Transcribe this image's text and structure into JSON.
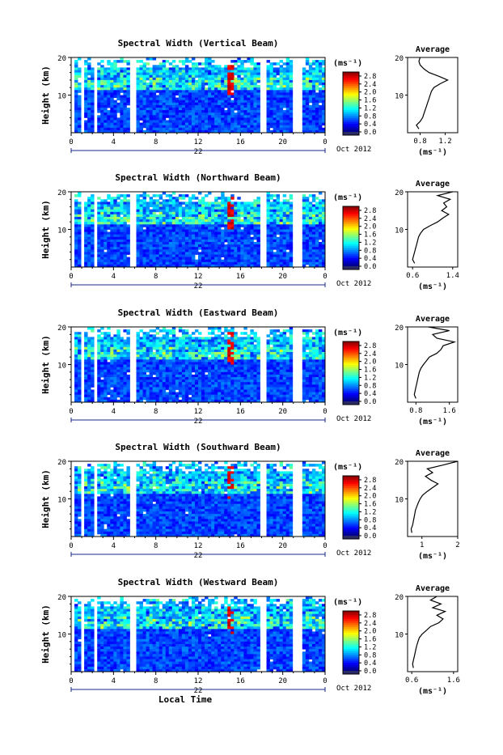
{
  "chart_data": [
    {
      "type": "heatmap",
      "title": "Spectral Width (Vertical Beam)",
      "ylabel": "Height (km)",
      "ylim": [
        0,
        20
      ],
      "yticks": [
        "20",
        "10"
      ],
      "xlim": [
        0,
        24
      ],
      "xticks": [
        "0",
        "4",
        "8",
        "12",
        "16",
        "20",
        "0"
      ],
      "date_label": "22",
      "month_label": "Oct 2012",
      "colorbar": {
        "unit": "(ms⁻¹)",
        "ticks": [
          "2.8",
          "2.4",
          "2.0",
          "1.6",
          "1.2",
          "0.8",
          "0.4",
          "0.0"
        ],
        "range": [
          0,
          3.0
        ]
      },
      "data_gaps_hours": [
        [
          0.0,
          0.2
        ],
        [
          1.0,
          1.2
        ],
        [
          2.2,
          2.4
        ],
        [
          3.0,
          3.2
        ],
        [
          5.6,
          6.2
        ],
        [
          17.8,
          18.4
        ],
        [
          20.8,
          21.8
        ]
      ],
      "high_width_column_hours": [
        14.9,
        15.4
      ],
      "average_profile": {
        "title": "Average",
        "xlabel": "(ms⁻¹)",
        "xticks": [
          "0.8",
          "1.2"
        ],
        "xlim": [
          0.6,
          1.4
        ],
        "yticks": [
          "20",
          "10"
        ],
        "height_km": [
          1,
          2,
          3,
          4,
          5,
          6,
          7,
          8,
          9,
          10,
          11,
          12,
          13,
          14,
          15,
          16,
          17,
          18,
          19,
          20
        ],
        "width_ms": [
          0.78,
          0.74,
          0.8,
          0.84,
          0.86,
          0.88,
          0.9,
          0.92,
          0.94,
          0.96,
          0.98,
          1.02,
          1.12,
          1.24,
          1.1,
          0.94,
          0.86,
          0.8,
          0.78,
          0.8
        ]
      }
    },
    {
      "type": "heatmap",
      "title": "Spectral Width (Northward Beam)",
      "ylabel": "Height (km)",
      "ylim": [
        0,
        20
      ],
      "yticks": [
        "20",
        "10"
      ],
      "xlim": [
        0,
        24
      ],
      "xticks": [
        "0",
        "4",
        "8",
        "12",
        "16",
        "20",
        "0"
      ],
      "date_label": "22",
      "month_label": "Oct 2012",
      "colorbar": {
        "unit": "(ms⁻¹)",
        "ticks": [
          "2.8",
          "2.4",
          "2.0",
          "1.6",
          "1.2",
          "0.8",
          "0.4",
          "0.0"
        ],
        "range": [
          0,
          3.0
        ]
      },
      "data_gaps_hours": [
        [
          0.0,
          0.2
        ],
        [
          1.0,
          1.2
        ],
        [
          2.2,
          2.4
        ],
        [
          3.0,
          3.2
        ],
        [
          5.6,
          6.2
        ],
        [
          17.8,
          18.4
        ],
        [
          20.8,
          21.8
        ]
      ],
      "high_width_column_hours": [
        14.9,
        15.4
      ],
      "average_profile": {
        "title": "Average",
        "xlabel": "(ms⁻¹)",
        "xticks": [
          "0.6",
          "1.4"
        ],
        "xlim": [
          0.5,
          1.5
        ],
        "yticks": [
          "20",
          "10"
        ],
        "height_km": [
          1,
          2,
          3,
          4,
          5,
          6,
          7,
          8,
          9,
          10,
          11,
          12,
          13,
          14,
          15,
          16,
          17,
          18,
          19,
          20
        ],
        "width_ms": [
          0.64,
          0.6,
          0.62,
          0.64,
          0.66,
          0.68,
          0.7,
          0.72,
          0.76,
          0.82,
          0.95,
          1.1,
          1.2,
          1.32,
          1.18,
          1.28,
          1.22,
          1.35,
          1.1,
          1.4
        ]
      }
    },
    {
      "type": "heatmap",
      "title": "Spectral Width (Eastward Beam)",
      "ylabel": "Height (km)",
      "ylim": [
        0,
        20
      ],
      "yticks": [
        "20",
        "10"
      ],
      "xlim": [
        0,
        24
      ],
      "xticks": [
        "0",
        "4",
        "8",
        "12",
        "16",
        "20",
        "0"
      ],
      "date_label": "22",
      "month_label": "Oct 2012",
      "colorbar": {
        "unit": "(ms⁻¹)",
        "ticks": [
          "2.8",
          "2.4",
          "2.0",
          "1.6",
          "1.2",
          "0.8",
          "0.4",
          "0.0"
        ],
        "range": [
          0,
          3.0
        ]
      },
      "data_gaps_hours": [
        [
          0.0,
          0.2
        ],
        [
          1.0,
          1.2
        ],
        [
          2.2,
          2.4
        ],
        [
          3.0,
          3.2
        ],
        [
          5.6,
          6.2
        ],
        [
          17.8,
          18.4
        ],
        [
          20.8,
          21.8
        ]
      ],
      "high_width_column_hours": [
        14.9,
        15.4
      ],
      "average_profile": {
        "title": "Average",
        "xlabel": "(ms⁻¹)",
        "xticks": [
          "0.8",
          "1.6"
        ],
        "xlim": [
          0.6,
          1.8
        ],
        "yticks": [
          "20",
          "10"
        ],
        "height_km": [
          1,
          2,
          3,
          4,
          5,
          6,
          7,
          8,
          9,
          10,
          11,
          12,
          13,
          14,
          15,
          16,
          17,
          18,
          19,
          20
        ],
        "width_ms": [
          0.8,
          0.76,
          0.78,
          0.8,
          0.82,
          0.84,
          0.86,
          0.88,
          0.92,
          0.98,
          1.05,
          1.12,
          1.3,
          1.4,
          1.45,
          1.72,
          1.3,
          1.2,
          1.6,
          1.1
        ]
      }
    },
    {
      "type": "heatmap",
      "title": "Spectral Width (Southward Beam)",
      "ylabel": "Height (km)",
      "ylim": [
        0,
        20
      ],
      "yticks": [
        "20",
        "10"
      ],
      "xlim": [
        0,
        24
      ],
      "xticks": [
        "0",
        "4",
        "8",
        "12",
        "16",
        "20",
        "0"
      ],
      "date_label": "22",
      "month_label": "Oct 2012",
      "colorbar": {
        "unit": "(ms⁻¹)",
        "ticks": [
          "2.8",
          "2.4",
          "2.0",
          "1.6",
          "1.2",
          "0.8",
          "0.4",
          "0.0"
        ],
        "range": [
          0,
          3.0
        ]
      },
      "data_gaps_hours": [
        [
          0.0,
          0.2
        ],
        [
          1.0,
          1.2
        ],
        [
          2.2,
          2.4
        ],
        [
          3.0,
          3.2
        ],
        [
          5.6,
          6.2
        ],
        [
          17.8,
          18.4
        ],
        [
          20.8,
          21.8
        ]
      ],
      "high_width_column_hours": [
        14.9,
        15.4
      ],
      "average_profile": {
        "title": "Average",
        "xlabel": "(ms⁻¹)",
        "xticks": [
          "1",
          "2"
        ],
        "xlim": [
          0.6,
          2.0
        ],
        "yticks": [
          "20",
          "10"
        ],
        "height_km": [
          1,
          2,
          3,
          4,
          5,
          6,
          7,
          8,
          9,
          10,
          11,
          12,
          13,
          14,
          15,
          16,
          17,
          18,
          19,
          20
        ],
        "width_ms": [
          0.72,
          0.7,
          0.74,
          0.76,
          0.78,
          0.8,
          0.82,
          0.86,
          0.9,
          0.95,
          1.02,
          1.15,
          1.3,
          1.45,
          1.25,
          1.1,
          1.3,
          1.15,
          1.6,
          2.0
        ]
      }
    },
    {
      "type": "heatmap",
      "title": "Spectral Width (Westward Beam)",
      "ylabel": "Height (km)",
      "ylim": [
        0,
        20
      ],
      "yticks": [
        "20",
        "10"
      ],
      "xlim": [
        0,
        24
      ],
      "xticks": [
        "0",
        "4",
        "8",
        "12",
        "16",
        "20",
        "0"
      ],
      "date_label": "22",
      "month_label": "Oct 2012",
      "xlabel": "Local Time",
      "colorbar": {
        "unit": "(ms⁻¹)",
        "ticks": [
          "2.8",
          "2.4",
          "2.0",
          "1.6",
          "1.2",
          "0.8",
          "0.4",
          "0.0"
        ],
        "range": [
          0,
          3.0
        ]
      },
      "data_gaps_hours": [
        [
          0.0,
          0.2
        ],
        [
          1.0,
          1.2
        ],
        [
          2.2,
          2.4
        ],
        [
          3.0,
          3.2
        ],
        [
          5.6,
          6.2
        ],
        [
          17.8,
          18.4
        ],
        [
          20.8,
          21.8
        ]
      ],
      "high_width_column_hours": [
        14.9,
        15.4
      ],
      "average_profile": {
        "title": "Average",
        "xlabel": "(ms⁻¹)",
        "xticks": [
          "0.6",
          "1.6"
        ],
        "xlim": [
          0.5,
          1.7
        ],
        "yticks": [
          "20",
          "10"
        ],
        "height_km": [
          1,
          2,
          3,
          4,
          5,
          6,
          7,
          8,
          9,
          10,
          11,
          12,
          13,
          14,
          15,
          16,
          17,
          18,
          19,
          20
        ],
        "width_ms": [
          0.64,
          0.62,
          0.64,
          0.66,
          0.68,
          0.7,
          0.72,
          0.75,
          0.78,
          0.85,
          0.95,
          1.05,
          1.25,
          1.35,
          1.2,
          1.4,
          1.1,
          1.3,
          1.05,
          1.2
        ]
      }
    }
  ]
}
